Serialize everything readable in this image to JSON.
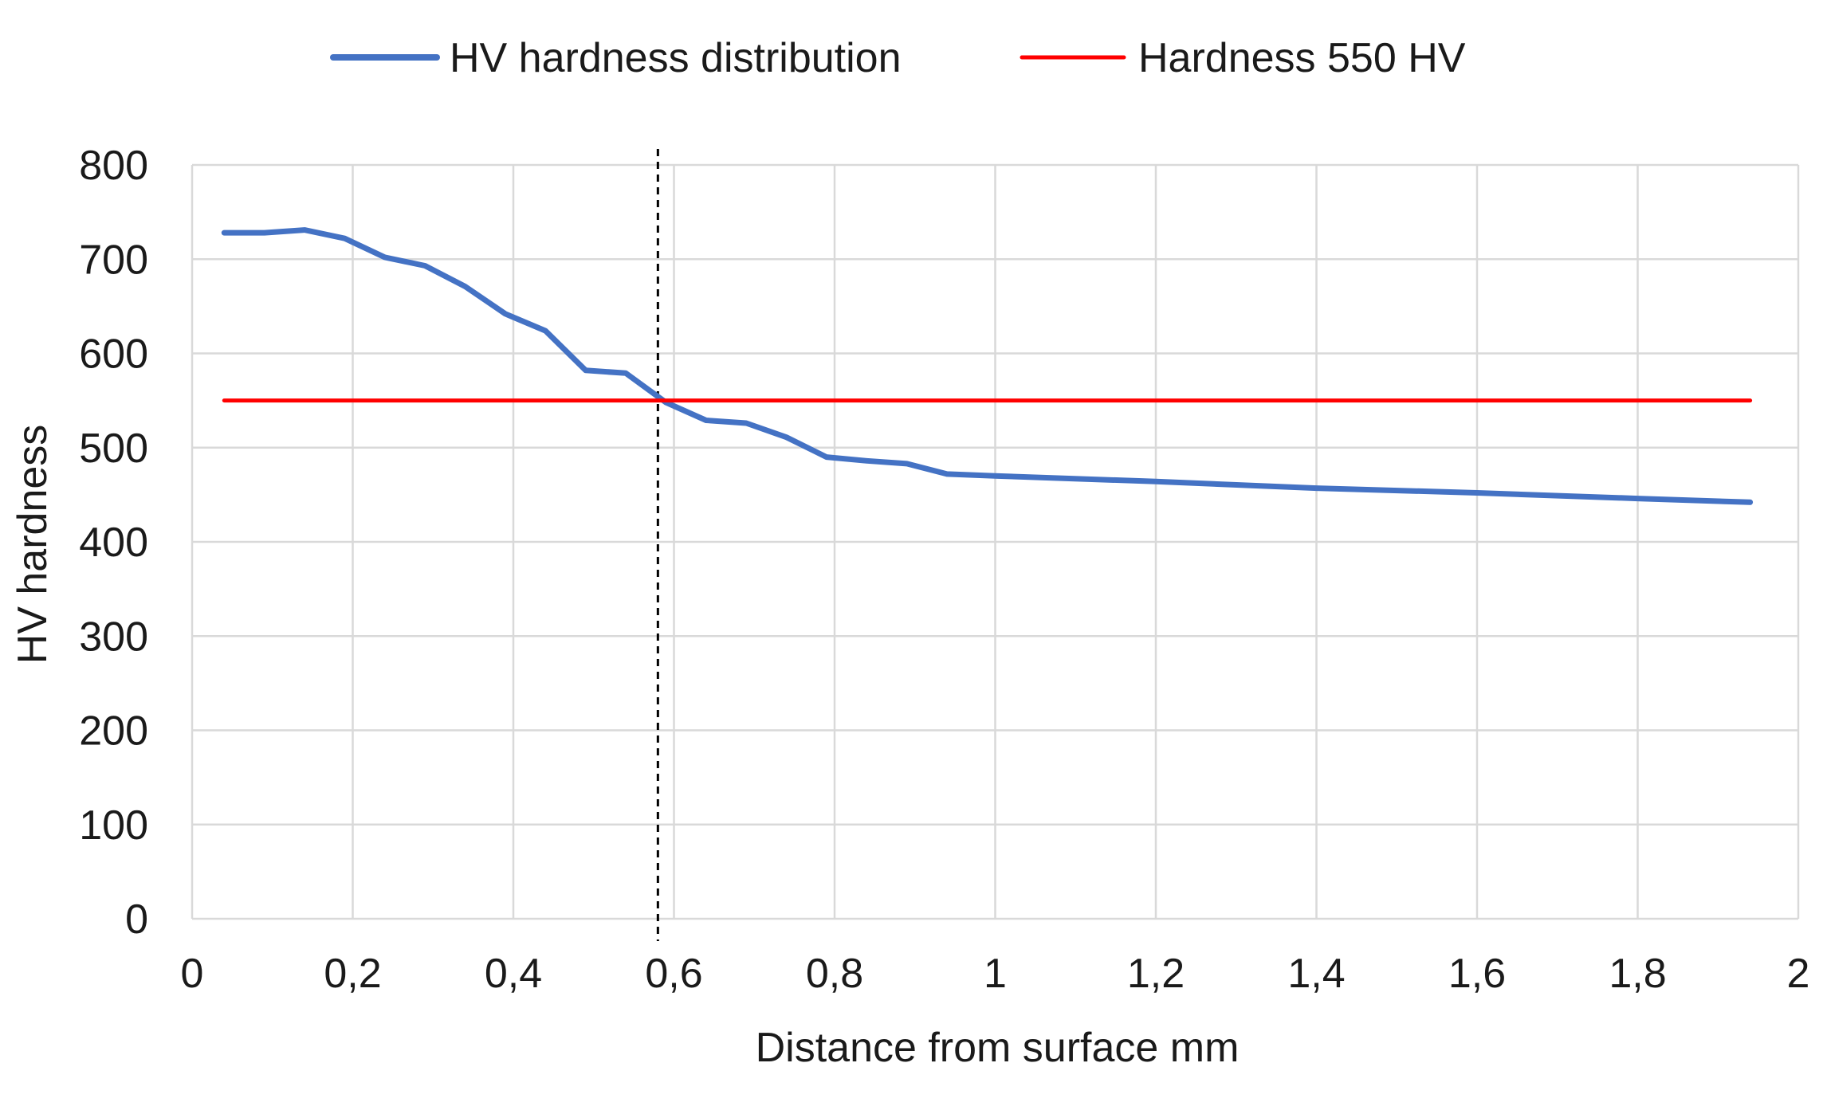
{
  "chart_data": {
    "type": "line",
    "title": "",
    "xlabel": "Distance from surface mm",
    "ylabel": "HV hardness",
    "xlim": [
      0,
      2
    ],
    "ylim": [
      0,
      800
    ],
    "grid": true,
    "legend_position": "top",
    "x_ticks": [
      0,
      0.2,
      0.4,
      0.6,
      0.8,
      1,
      1.2,
      1.4,
      1.6,
      1.8,
      2
    ],
    "x_tick_labels": [
      "0",
      "0,2",
      "0,4",
      "0,6",
      "0,8",
      "1",
      "1,2",
      "1,4",
      "1,6",
      "1,8",
      "2"
    ],
    "y_ticks": [
      0,
      100,
      200,
      300,
      400,
      500,
      600,
      700,
      800
    ],
    "y_tick_labels": [
      "0",
      "100",
      "200",
      "300",
      "400",
      "500",
      "600",
      "700",
      "800"
    ],
    "series": [
      {
        "name": "HV hardness distribution",
        "color": "#4472C4",
        "x": [
          0.04,
          0.09,
          0.14,
          0.19,
          0.24,
          0.29,
          0.34,
          0.39,
          0.44,
          0.49,
          0.54,
          0.59,
          0.64,
          0.69,
          0.74,
          0.79,
          0.84,
          0.89,
          0.94,
          1.0,
          1.2,
          1.4,
          1.6,
          1.8,
          1.94
        ],
        "y": [
          728,
          728,
          731,
          722,
          702,
          693,
          671,
          642,
          624,
          582,
          579,
          548,
          529,
          526,
          511,
          490,
          486,
          483,
          472,
          470,
          464,
          457,
          452,
          446,
          442
        ]
      },
      {
        "name": "Hardness 550 HV",
        "color": "#FF0000",
        "x": [
          0.04,
          1.94
        ],
        "y": [
          550,
          550
        ]
      }
    ],
    "vertical_marker": {
      "x": 0.58,
      "style": "dashed",
      "color": "#000000"
    }
  }
}
